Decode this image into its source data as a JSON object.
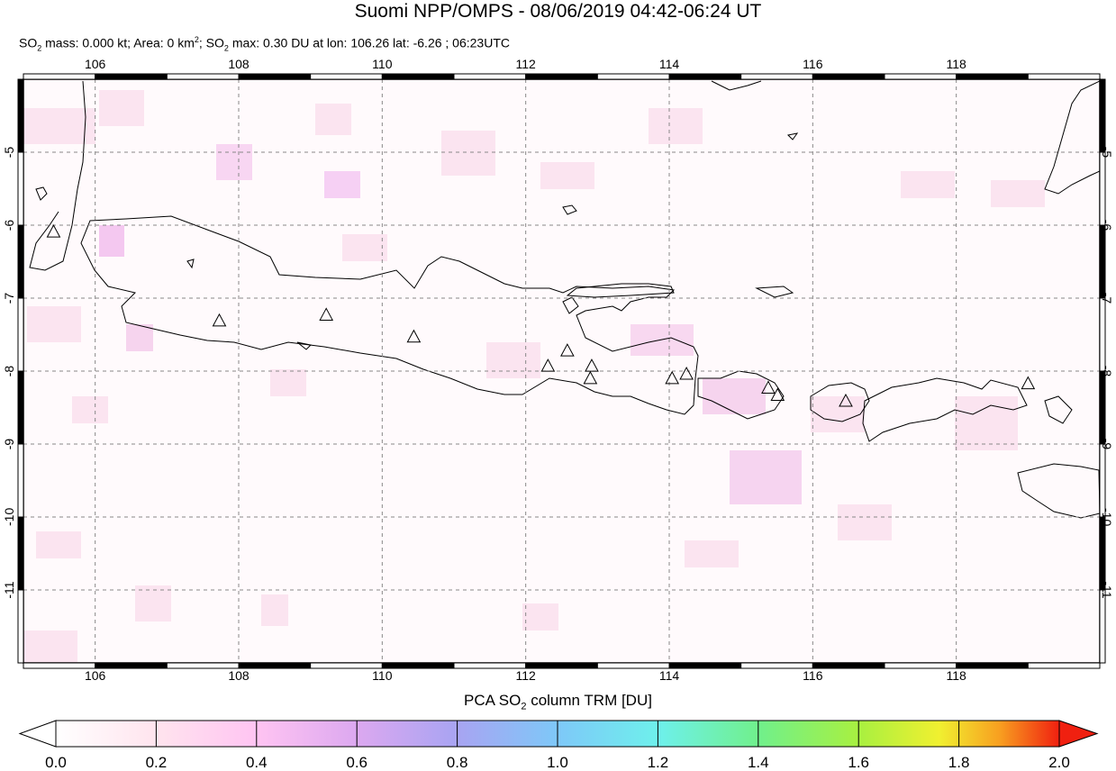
{
  "title": "Suomi NPP/OMPS - 08/06/2019 04:42-06:24 UT",
  "subtitle": {
    "part1": "SO",
    "sub1": "2",
    "part2": " mass: 0.000 kt; Area: 0 km",
    "sup1": "2",
    "part3": "; SO",
    "sub2": "2",
    "part4": " max: 0.30 DU at lon: 106.26 lat: -6.26 ; 06:23UTC"
  },
  "map": {
    "lon_range": [
      105,
      120
    ],
    "lat_range": [
      -12,
      -4
    ],
    "lon_ticks": [
      "106",
      "108",
      "110",
      "112",
      "114",
      "116",
      "118"
    ],
    "lat_ticks": [
      "-5",
      "-6",
      "-7",
      "-8",
      "-9",
      "-10",
      "-11"
    ],
    "volcanoes": [
      {
        "lon": 105.42,
        "lat": -6.1
      },
      {
        "lon": 107.73,
        "lat": -7.32
      },
      {
        "lon": 109.22,
        "lat": -7.24
      },
      {
        "lon": 110.44,
        "lat": -7.54
      },
      {
        "lon": 112.31,
        "lat": -7.94
      },
      {
        "lon": 112.58,
        "lat": -7.73
      },
      {
        "lon": 112.92,
        "lat": -7.94
      },
      {
        "lon": 112.9,
        "lat": -8.11
      },
      {
        "lon": 114.04,
        "lat": -8.11
      },
      {
        "lon": 114.24,
        "lat": -8.05
      },
      {
        "lon": 115.38,
        "lat": -8.24
      },
      {
        "lon": 115.51,
        "lat": -8.34
      },
      {
        "lon": 116.46,
        "lat": -8.42
      },
      {
        "lon": 119.0,
        "lat": -8.18
      }
    ]
  },
  "colorbar": {
    "label_pre": "PCA SO",
    "label_sub": "2",
    "label_post": " column TRM [DU]",
    "ticks": [
      "0.0",
      "0.2",
      "0.4",
      "0.6",
      "0.8",
      "1.0",
      "1.2",
      "1.4",
      "1.6",
      "1.8",
      "2.0"
    ],
    "range": [
      0.0,
      2.0
    ],
    "colors": [
      "#ffffff",
      "#ffe8f0",
      "#ffc0f0",
      "#e0a8f0",
      "#a0a0f0",
      "#80c8f8",
      "#70f0f0",
      "#70f090",
      "#80f040",
      "#f0f030",
      "#f8b020",
      "#f06020",
      "#f02010"
    ]
  }
}
